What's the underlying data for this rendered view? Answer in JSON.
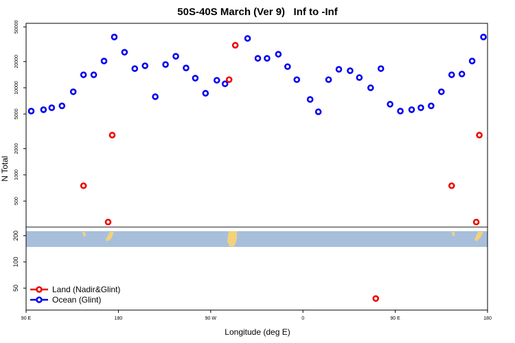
{
  "chart_data": {
    "type": "scatter",
    "title": "50S-40S March (Ver 9)   Inf to -Inf",
    "x_label": "Longitude (deg E)",
    "y_label": "N Total",
    "xlim": [
      90,
      540
    ],
    "xticks": [
      {
        "value": 90,
        "label": "90 E"
      },
      180,
      {
        "value": 270,
        "label": "90 W"
      },
      {
        "value": 360,
        "label": "0"
      },
      {
        "value": 450,
        "label": "90 E"
      },
      {
        "value": 540,
        "label": "180"
      }
    ],
    "ylim": [
      28,
      55000
    ],
    "yticks": [
      50,
      100,
      200,
      500,
      1000,
      2000,
      5000,
      10000,
      20000,
      50000
    ],
    "log_y": true,
    "legend": "bottom-left",
    "series": [
      {
        "name": "Ocean (Glint)",
        "color": "#0000ee",
        "x": [
          95,
          107,
          115,
          125,
          136,
          146,
          156,
          166,
          176,
          186,
          196,
          206,
          216,
          226,
          236,
          246,
          255,
          265,
          276,
          284,
          306,
          316,
          325,
          336,
          345,
          354,
          367,
          375,
          385,
          395,
          406,
          415,
          426,
          436,
          445,
          455,
          466,
          475,
          485,
          495,
          505,
          515,
          525,
          536
        ],
        "values": [
          5400,
          5600,
          5900,
          6200,
          9000,
          14100,
          14100,
          20300,
          38300,
          25600,
          16600,
          17900,
          7900,
          18500,
          23000,
          16900,
          12900,
          8650,
          12200,
          11100,
          36900,
          21800,
          21800,
          24300,
          17500,
          12400,
          7350,
          5300,
          12400,
          16300,
          15700,
          13100,
          10000,
          16600,
          6480,
          5400,
          5600,
          5900,
          6200,
          9000,
          14100,
          14400,
          20300,
          38300
        ]
      },
      {
        "name": "Land (Nadir&Glint)",
        "color": "#ee0000",
        "x": [
          146,
          170,
          174,
          288,
          294,
          431,
          505,
          529,
          532
        ],
        "values": [
          750,
          287,
          2860,
          12400,
          30800,
          38,
          750,
          287,
          2860
        ]
      }
    ]
  }
}
